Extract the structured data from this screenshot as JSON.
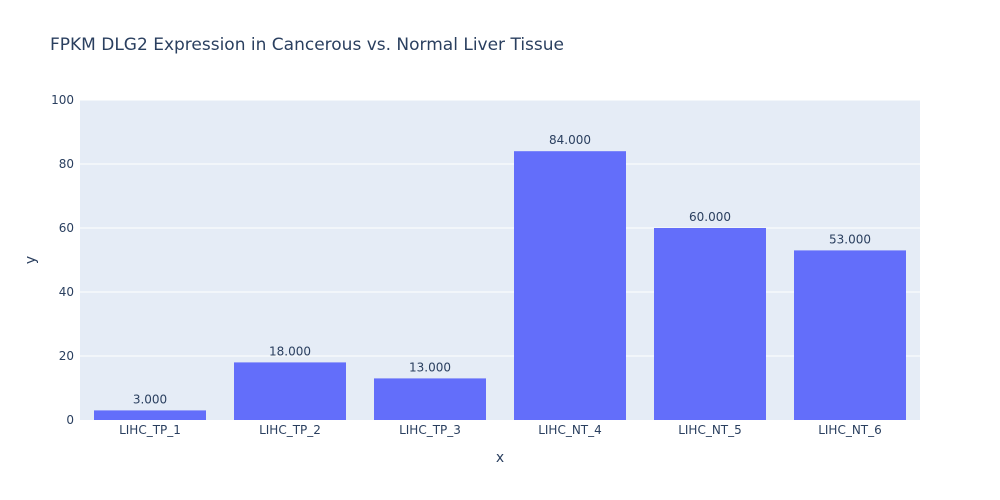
{
  "chart_data": {
    "type": "bar",
    "title": "FPKM DLG2 Expression in Cancerous vs. Normal Liver Tissue",
    "xlabel": "x",
    "ylabel": "y",
    "categories": [
      "LIHC_TP_1",
      "LIHC_TP_2",
      "LIHC_TP_3",
      "LIHC_NT_4",
      "LIHC_NT_5",
      "LIHC_NT_6"
    ],
    "values": [
      3,
      18,
      13,
      84,
      60,
      53
    ],
    "data_labels": [
      "3.000",
      "18.000",
      "13.000",
      "84.000",
      "60.000",
      "53.000"
    ],
    "ylim": [
      0,
      100
    ],
    "yticks": [
      0,
      20,
      40,
      60,
      80,
      100
    ],
    "grid": true,
    "colors": {
      "bar": "#636efa",
      "plot_background": "#e5ecf6",
      "gridline": "#ffffff",
      "text": "#2a3f5f"
    }
  }
}
